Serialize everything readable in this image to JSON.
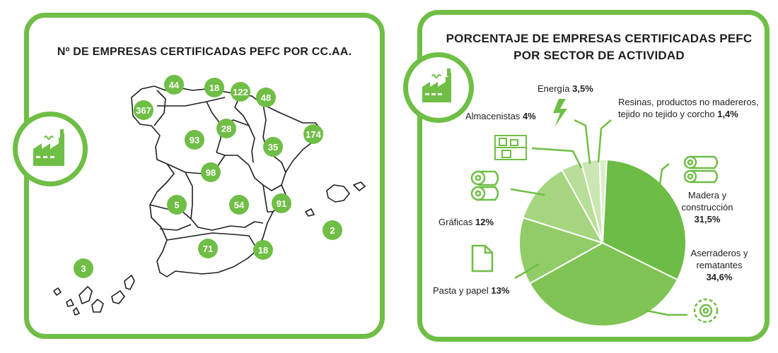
{
  "colors": {
    "accent": "#6fbe45",
    "dark_green": "#5aa63a",
    "text": "#1f1f1f"
  },
  "icons": [
    "factory-icon",
    "lightning-icon",
    "shelves-icon",
    "paper-rolls-icon",
    "document-icon",
    "logs-icon",
    "saw-blade-icon"
  ],
  "map_panel": {
    "title": "Nº DE EMPRESAS CERTIFICADAS PEFC POR CC.AA."
  },
  "pie_panel": {
    "title_line1": "PORCENTAJE DE EMPRESAS CERTIFICADAS PEFC",
    "title_line2": "POR SECTOR DE ACTIVIDAD"
  },
  "chart_data": [
    {
      "type": "map",
      "title": "Nº DE EMPRESAS CERTIFICADAS PEFC POR CC.AA.",
      "values": [
        {
          "value": 367
        },
        {
          "value": 44
        },
        {
          "value": 18
        },
        {
          "value": 122
        },
        {
          "value": 48
        },
        {
          "value": 28
        },
        {
          "value": 93
        },
        {
          "value": 174
        },
        {
          "value": 35
        },
        {
          "value": 98
        },
        {
          "value": 5
        },
        {
          "value": 54
        },
        {
          "value": 91
        },
        {
          "value": 2
        },
        {
          "value": 71
        },
        {
          "value": 18
        },
        {
          "value": 3
        }
      ]
    },
    {
      "type": "pie",
      "title": "PORCENTAJE DE EMPRESAS CERTIFICADAS PEFC POR SECTOR DE ACTIVIDAD",
      "slices": [
        {
          "label": "Madera y construcción",
          "value": 31.5,
          "display": "31,5%",
          "color": "#6cbc45"
        },
        {
          "label": "Aserraderos y rematantes",
          "value": 34.6,
          "display": "34,6%",
          "color": "#7fc455"
        },
        {
          "label": "Pasta y papel",
          "value": 13,
          "display": "13%",
          "color": "#91cc68"
        },
        {
          "label": "Gráficas",
          "value": 12,
          "display": "12%",
          "color": "#a5d57f"
        },
        {
          "label": "Almacenistas",
          "value": 4,
          "display": "4%",
          "color": "#b9de99"
        },
        {
          "label": "Energía",
          "value": 3.5,
          "display": "3,5%",
          "color": "#cbe6b2"
        },
        {
          "label": "Resinas, productos no madereros, tejido no tejido y corcho",
          "value": 1.4,
          "display": "1,4%",
          "color": "#dbeecb"
        }
      ]
    }
  ]
}
